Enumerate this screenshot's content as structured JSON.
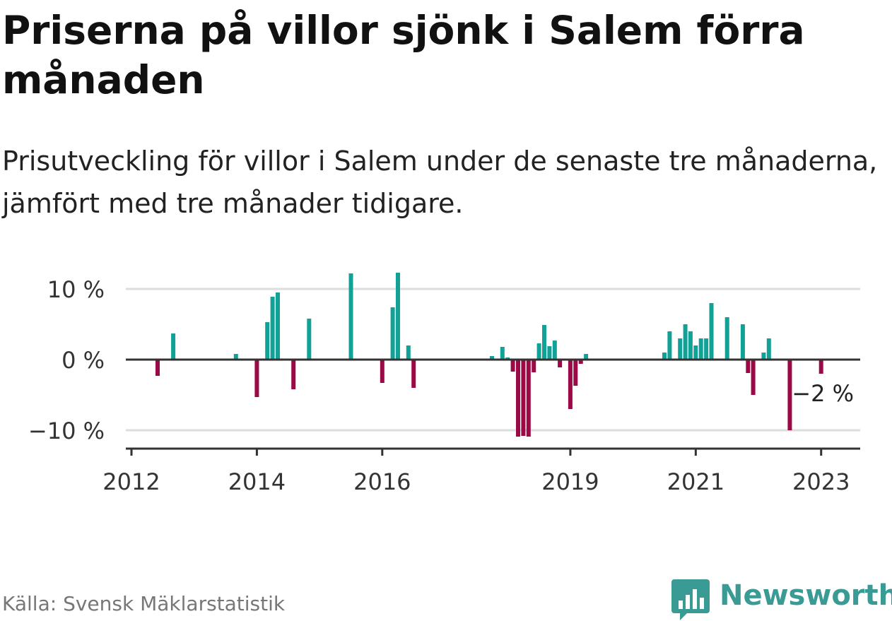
{
  "title": "Priserna på villor sjönk i Salem förra månaden",
  "subtitle": "Prisutveckling för villor i Salem under de senaste tre månaderna, jämfört med tre månader tidigare.",
  "source": "Källa: Svensk Mäklarstatistik",
  "brand": "Newsworthy",
  "colors": {
    "positive": "#12a196",
    "negative": "#9b0a46",
    "brand": "#3a9a94"
  },
  "chart_data": {
    "type": "bar",
    "ylim": [
      -12.5,
      12.5
    ],
    "y_ticks": [
      -10,
      0,
      10
    ],
    "y_tick_labels": [
      "−10 %",
      "0 %",
      "10 %"
    ],
    "x_tick_labels": [
      "2012",
      "2014",
      "2016",
      "2019",
      "2021",
      "2023"
    ],
    "x_tick_dates": [
      "2012-01",
      "2014-01",
      "2016-01",
      "2019-01",
      "2021-01",
      "2023-01"
    ],
    "annotation": {
      "label": "−2 %",
      "date": "2023-01",
      "value": -2
    },
    "grid": true,
    "series": [
      {
        "points": [
          {
            "date": "2012-06",
            "value": -2.3
          },
          {
            "date": "2012-09",
            "value": 3.7
          },
          {
            "date": "2013-09",
            "value": 0.8
          },
          {
            "date": "2014-01",
            "value": -5.3
          },
          {
            "date": "2014-03",
            "value": 5.3
          },
          {
            "date": "2014-04",
            "value": 8.9
          },
          {
            "date": "2014-05",
            "value": 9.5
          },
          {
            "date": "2014-08",
            "value": -4.2
          },
          {
            "date": "2014-11",
            "value": 5.8
          },
          {
            "date": "2015-07",
            "value": 12.2
          },
          {
            "date": "2016-01",
            "value": -3.3
          },
          {
            "date": "2016-03",
            "value": 7.4
          },
          {
            "date": "2016-04",
            "value": 12.3
          },
          {
            "date": "2016-06",
            "value": 2.0
          },
          {
            "date": "2016-07",
            "value": -4.0
          },
          {
            "date": "2017-10",
            "value": 0.5
          },
          {
            "date": "2017-12",
            "value": 1.8
          },
          {
            "date": "2018-01",
            "value": 0.3
          },
          {
            "date": "2018-02",
            "value": -1.7
          },
          {
            "date": "2018-03",
            "value": -10.9
          },
          {
            "date": "2018-04",
            "value": -10.8
          },
          {
            "date": "2018-05",
            "value": -10.9
          },
          {
            "date": "2018-06",
            "value": -1.8
          },
          {
            "date": "2018-07",
            "value": 2.3
          },
          {
            "date": "2018-08",
            "value": 4.9
          },
          {
            "date": "2018-09",
            "value": 1.9
          },
          {
            "date": "2018-10",
            "value": 2.7
          },
          {
            "date": "2018-11",
            "value": -1.1
          },
          {
            "date": "2019-01",
            "value": -7.0
          },
          {
            "date": "2019-02",
            "value": -3.7
          },
          {
            "date": "2019-03",
            "value": -0.6
          },
          {
            "date": "2019-04",
            "value": 0.8
          },
          {
            "date": "2020-07",
            "value": 1.0
          },
          {
            "date": "2020-08",
            "value": 4.0
          },
          {
            "date": "2020-10",
            "value": 3.0
          },
          {
            "date": "2020-11",
            "value": 5.0
          },
          {
            "date": "2020-12",
            "value": 4.0
          },
          {
            "date": "2021-01",
            "value": 2.0
          },
          {
            "date": "2021-02",
            "value": 3.0
          },
          {
            "date": "2021-03",
            "value": 3.0
          },
          {
            "date": "2021-04",
            "value": 8.0
          },
          {
            "date": "2021-07",
            "value": 6.0
          },
          {
            "date": "2021-10",
            "value": 5.0
          },
          {
            "date": "2021-11",
            "value": -1.9
          },
          {
            "date": "2021-12",
            "value": -5.0
          },
          {
            "date": "2022-02",
            "value": 1.0
          },
          {
            "date": "2022-03",
            "value": 3.0
          },
          {
            "date": "2022-07",
            "value": -10.0
          },
          {
            "date": "2023-01",
            "value": -2.0
          }
        ]
      }
    ]
  }
}
